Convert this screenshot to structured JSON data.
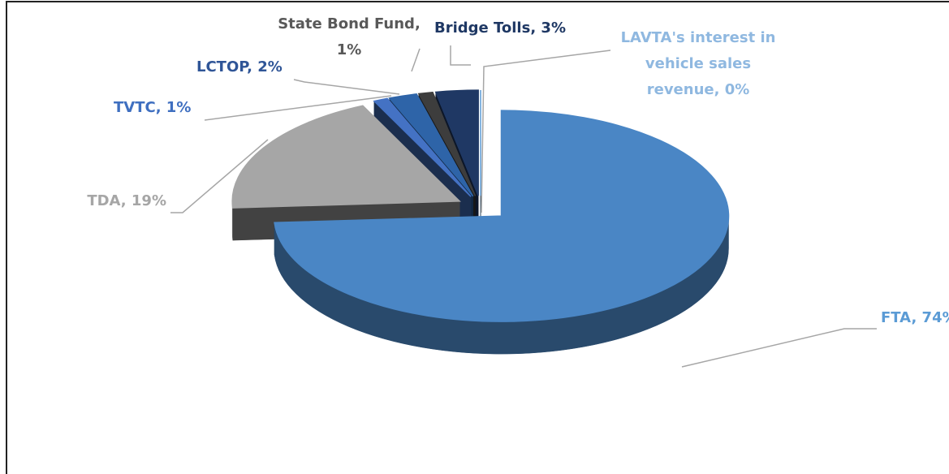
{
  "chart_data": {
    "type": "pie3d",
    "values": [
      74,
      19,
      1,
      2,
      1,
      3,
      0
    ],
    "value_labels": [
      [
        "FTA, 74%"
      ],
      [
        "TDA, 19%"
      ],
      [
        "TVTC, 1%"
      ],
      [
        "LCTOP, 2%"
      ],
      [
        "State Bond Fund,",
        "1%"
      ],
      [
        "Bridge Tolls, 3%"
      ],
      [
        "LAVTA's interest in",
        "vehicle sales",
        "revenue, 0%"
      ]
    ],
    "colors": [
      "#4a86c5",
      "#a6a6a6",
      "#4472c4",
      "#2e64a8",
      "#3d3d3d",
      "#1f3864",
      "#5b9bd5"
    ],
    "label_colors": [
      "#5b9bd5",
      "#a6a6a6",
      "#3f6fc0",
      "#2f5597",
      "#595959",
      "#1f3864",
      "#8fb8e0"
    ]
  }
}
